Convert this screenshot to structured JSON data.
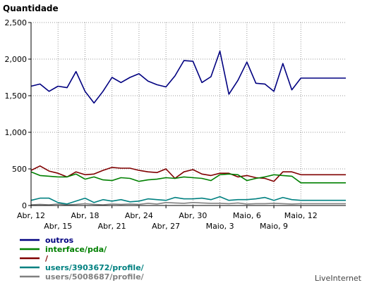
{
  "chart_data": {
    "type": "line",
    "ylabel": "Quantidade",
    "xlabel": "",
    "ylim": [
      0,
      2500
    ],
    "yticks": [
      0,
      500,
      1000,
      1500,
      2000,
      2500
    ],
    "ytick_labels": [
      "0",
      "500",
      "1,000",
      "1,500",
      "2,000",
      "2,500"
    ],
    "grid": true,
    "x_points": 36,
    "xtick_labels": [
      {
        "index": 0,
        "label": "Abr, 12",
        "row": 1
      },
      {
        "index": 3,
        "label": "Abr, 15",
        "row": 2
      },
      {
        "index": 6,
        "label": "Abr, 18",
        "row": 1
      },
      {
        "index": 9,
        "label": "Abr, 21",
        "row": 2
      },
      {
        "index": 12,
        "label": "Abr, 24",
        "row": 1
      },
      {
        "index": 15,
        "label": "Abr, 27",
        "row": 2
      },
      {
        "index": 18,
        "label": "Abr, 30",
        "row": 1
      },
      {
        "index": 21,
        "label": "Maio, 3",
        "row": 2
      },
      {
        "index": 24,
        "label": "Maio, 6",
        "row": 1
      },
      {
        "index": 27,
        "label": "Maio, 9",
        "row": 2
      },
      {
        "index": 30,
        "label": "Maio, 12",
        "row": 1
      }
    ],
    "legend_position": "bottom-left",
    "series": [
      {
        "name": "outros",
        "color": "#000080",
        "values": [
          1630,
          1660,
          1560,
          1630,
          1610,
          1830,
          1560,
          1400,
          1560,
          1750,
          1680,
          1750,
          1800,
          1700,
          1650,
          1620,
          1770,
          1980,
          1970,
          1680,
          1760,
          2110,
          1520,
          1710,
          1960,
          1670,
          1660,
          1560,
          1940,
          1580,
          1740,
          1740,
          1740,
          1740,
          1740,
          1740
        ]
      },
      {
        "name": "interface/pda/",
        "color": "#008000",
        "values": [
          460,
          410,
          400,
          390,
          390,
          430,
          360,
          390,
          350,
          340,
          380,
          370,
          330,
          350,
          360,
          380,
          370,
          390,
          380,
          370,
          340,
          420,
          430,
          420,
          340,
          370,
          390,
          420,
          410,
          400,
          310,
          310,
          310,
          310,
          310,
          310
        ]
      },
      {
        "name": "/",
        "color": "#800000",
        "values": [
          480,
          540,
          470,
          440,
          390,
          460,
          420,
          430,
          480,
          520,
          510,
          510,
          480,
          460,
          450,
          500,
          370,
          460,
          490,
          430,
          410,
          440,
          440,
          390,
          410,
          380,
          370,
          330,
          460,
          460,
          420,
          420,
          420,
          420,
          420,
          420
        ]
      },
      {
        "name": "users/3903672/profile/",
        "color": "#008080",
        "values": [
          70,
          100,
          100,
          40,
          20,
          60,
          100,
          40,
          80,
          60,
          80,
          50,
          60,
          90,
          80,
          70,
          110,
          90,
          90,
          100,
          80,
          120,
          70,
          80,
          80,
          90,
          110,
          70,
          110,
          80,
          70,
          70,
          70,
          70,
          70,
          70
        ]
      },
      {
        "name": "users/5008687/profile/",
        "color": "#808080",
        "values": [
          10,
          15,
          10,
          20,
          10,
          15,
          25,
          15,
          10,
          20,
          15,
          20,
          15,
          30,
          20,
          40,
          35,
          30,
          40,
          35,
          30,
          30,
          25,
          35,
          20,
          25,
          25,
          30,
          25,
          20,
          25,
          25,
          25,
          25,
          25,
          25
        ]
      }
    ]
  },
  "credit": "LiveInternet"
}
